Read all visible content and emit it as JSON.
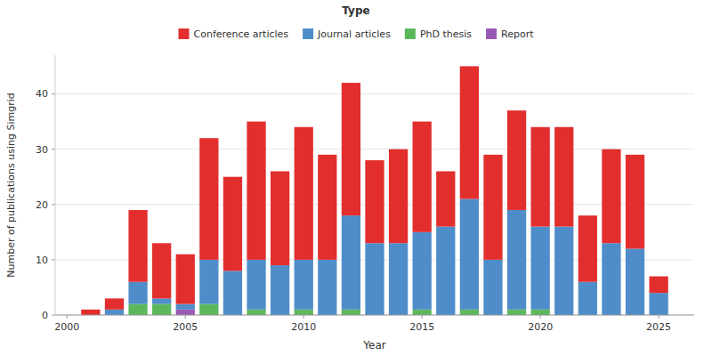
{
  "chart_data": {
    "type": "bar",
    "stacked": true,
    "title": "Type",
    "xlabel": "Year",
    "ylabel": "Number of publications using Simgrid",
    "x": [
      2001,
      2002,
      2003,
      2004,
      2005,
      2006,
      2007,
      2008,
      2009,
      2010,
      2011,
      2012,
      2013,
      2014,
      2015,
      2016,
      2017,
      2018,
      2019,
      2020,
      2021,
      2022,
      2023,
      2024,
      2025
    ],
    "series": [
      {
        "name": "Conference articles",
        "color": "#e32e2e",
        "values": [
          1,
          2,
          13,
          10,
          9,
          22,
          17,
          25,
          17,
          24,
          19,
          24,
          15,
          17,
          20,
          10,
          24,
          19,
          18,
          18,
          18,
          12,
          17,
          17,
          3
        ]
      },
      {
        "name": "Journal articles",
        "color": "#4e8dc9",
        "values": [
          0,
          1,
          4,
          1,
          1,
          8,
          8,
          9,
          9,
          9,
          10,
          17,
          13,
          13,
          14,
          16,
          20,
          10,
          18,
          15,
          16,
          6,
          13,
          12,
          4
        ]
      },
      {
        "name": "PhD thesis",
        "color": "#5cb85c",
        "values": [
          0,
          0,
          2,
          2,
          0,
          2,
          0,
          1,
          0,
          1,
          0,
          1,
          0,
          0,
          1,
          0,
          1,
          0,
          1,
          1,
          0,
          0,
          0,
          0,
          0
        ]
      },
      {
        "name": "Report",
        "color": "#9b59b6",
        "values": [
          0,
          0,
          0,
          0,
          1,
          0,
          0,
          0,
          0,
          0,
          0,
          0,
          0,
          0,
          0,
          0,
          0,
          0,
          0,
          0,
          0,
          0,
          0,
          0,
          0
        ]
      }
    ],
    "xlim": [
      1999.5,
      2026.5
    ],
    "xticks": [
      2000,
      2005,
      2010,
      2015,
      2020,
      2025
    ],
    "ylim": [
      0,
      47
    ],
    "yticks": [
      0,
      10,
      20,
      30,
      40
    ],
    "grid": true,
    "legend": "top"
  }
}
